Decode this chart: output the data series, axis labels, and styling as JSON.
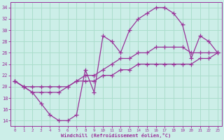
{
  "xlabel": "Windchill (Refroidissement éolien,°C)",
  "bg_color": "#cceee8",
  "grid_color": "#aaddcc",
  "line_color": "#993399",
  "hours": [
    0,
    1,
    2,
    3,
    4,
    5,
    6,
    7,
    8,
    9,
    10,
    11,
    12,
    13,
    14,
    15,
    16,
    17,
    18,
    19,
    20,
    21,
    22,
    23
  ],
  "temp_line": [
    21,
    20,
    19,
    17,
    15,
    14,
    14,
    15,
    23,
    19,
    29,
    28,
    26,
    30,
    32,
    33,
    34,
    34,
    33,
    31,
    25,
    29,
    28,
    26
  ],
  "wind_line1": [
    21,
    20,
    19,
    19,
    19,
    19,
    20,
    21,
    22,
    22,
    23,
    24,
    25,
    25,
    26,
    26,
    27,
    27,
    27,
    27,
    26,
    26,
    26,
    26
  ],
  "wind_line2": [
    21,
    20,
    20,
    20,
    20,
    20,
    20,
    21,
    21,
    21,
    22,
    22,
    23,
    23,
    24,
    24,
    24,
    24,
    24,
    24,
    24,
    25,
    25,
    26
  ],
  "ylim": [
    13,
    35
  ],
  "xlim": [
    -0.5,
    23.5
  ],
  "yticks": [
    14,
    16,
    18,
    20,
    22,
    24,
    26,
    28,
    30,
    32,
    34
  ],
  "xticks": [
    0,
    1,
    2,
    3,
    4,
    5,
    6,
    7,
    8,
    9,
    10,
    11,
    12,
    13,
    14,
    15,
    16,
    17,
    18,
    19,
    20,
    21,
    22,
    23
  ]
}
